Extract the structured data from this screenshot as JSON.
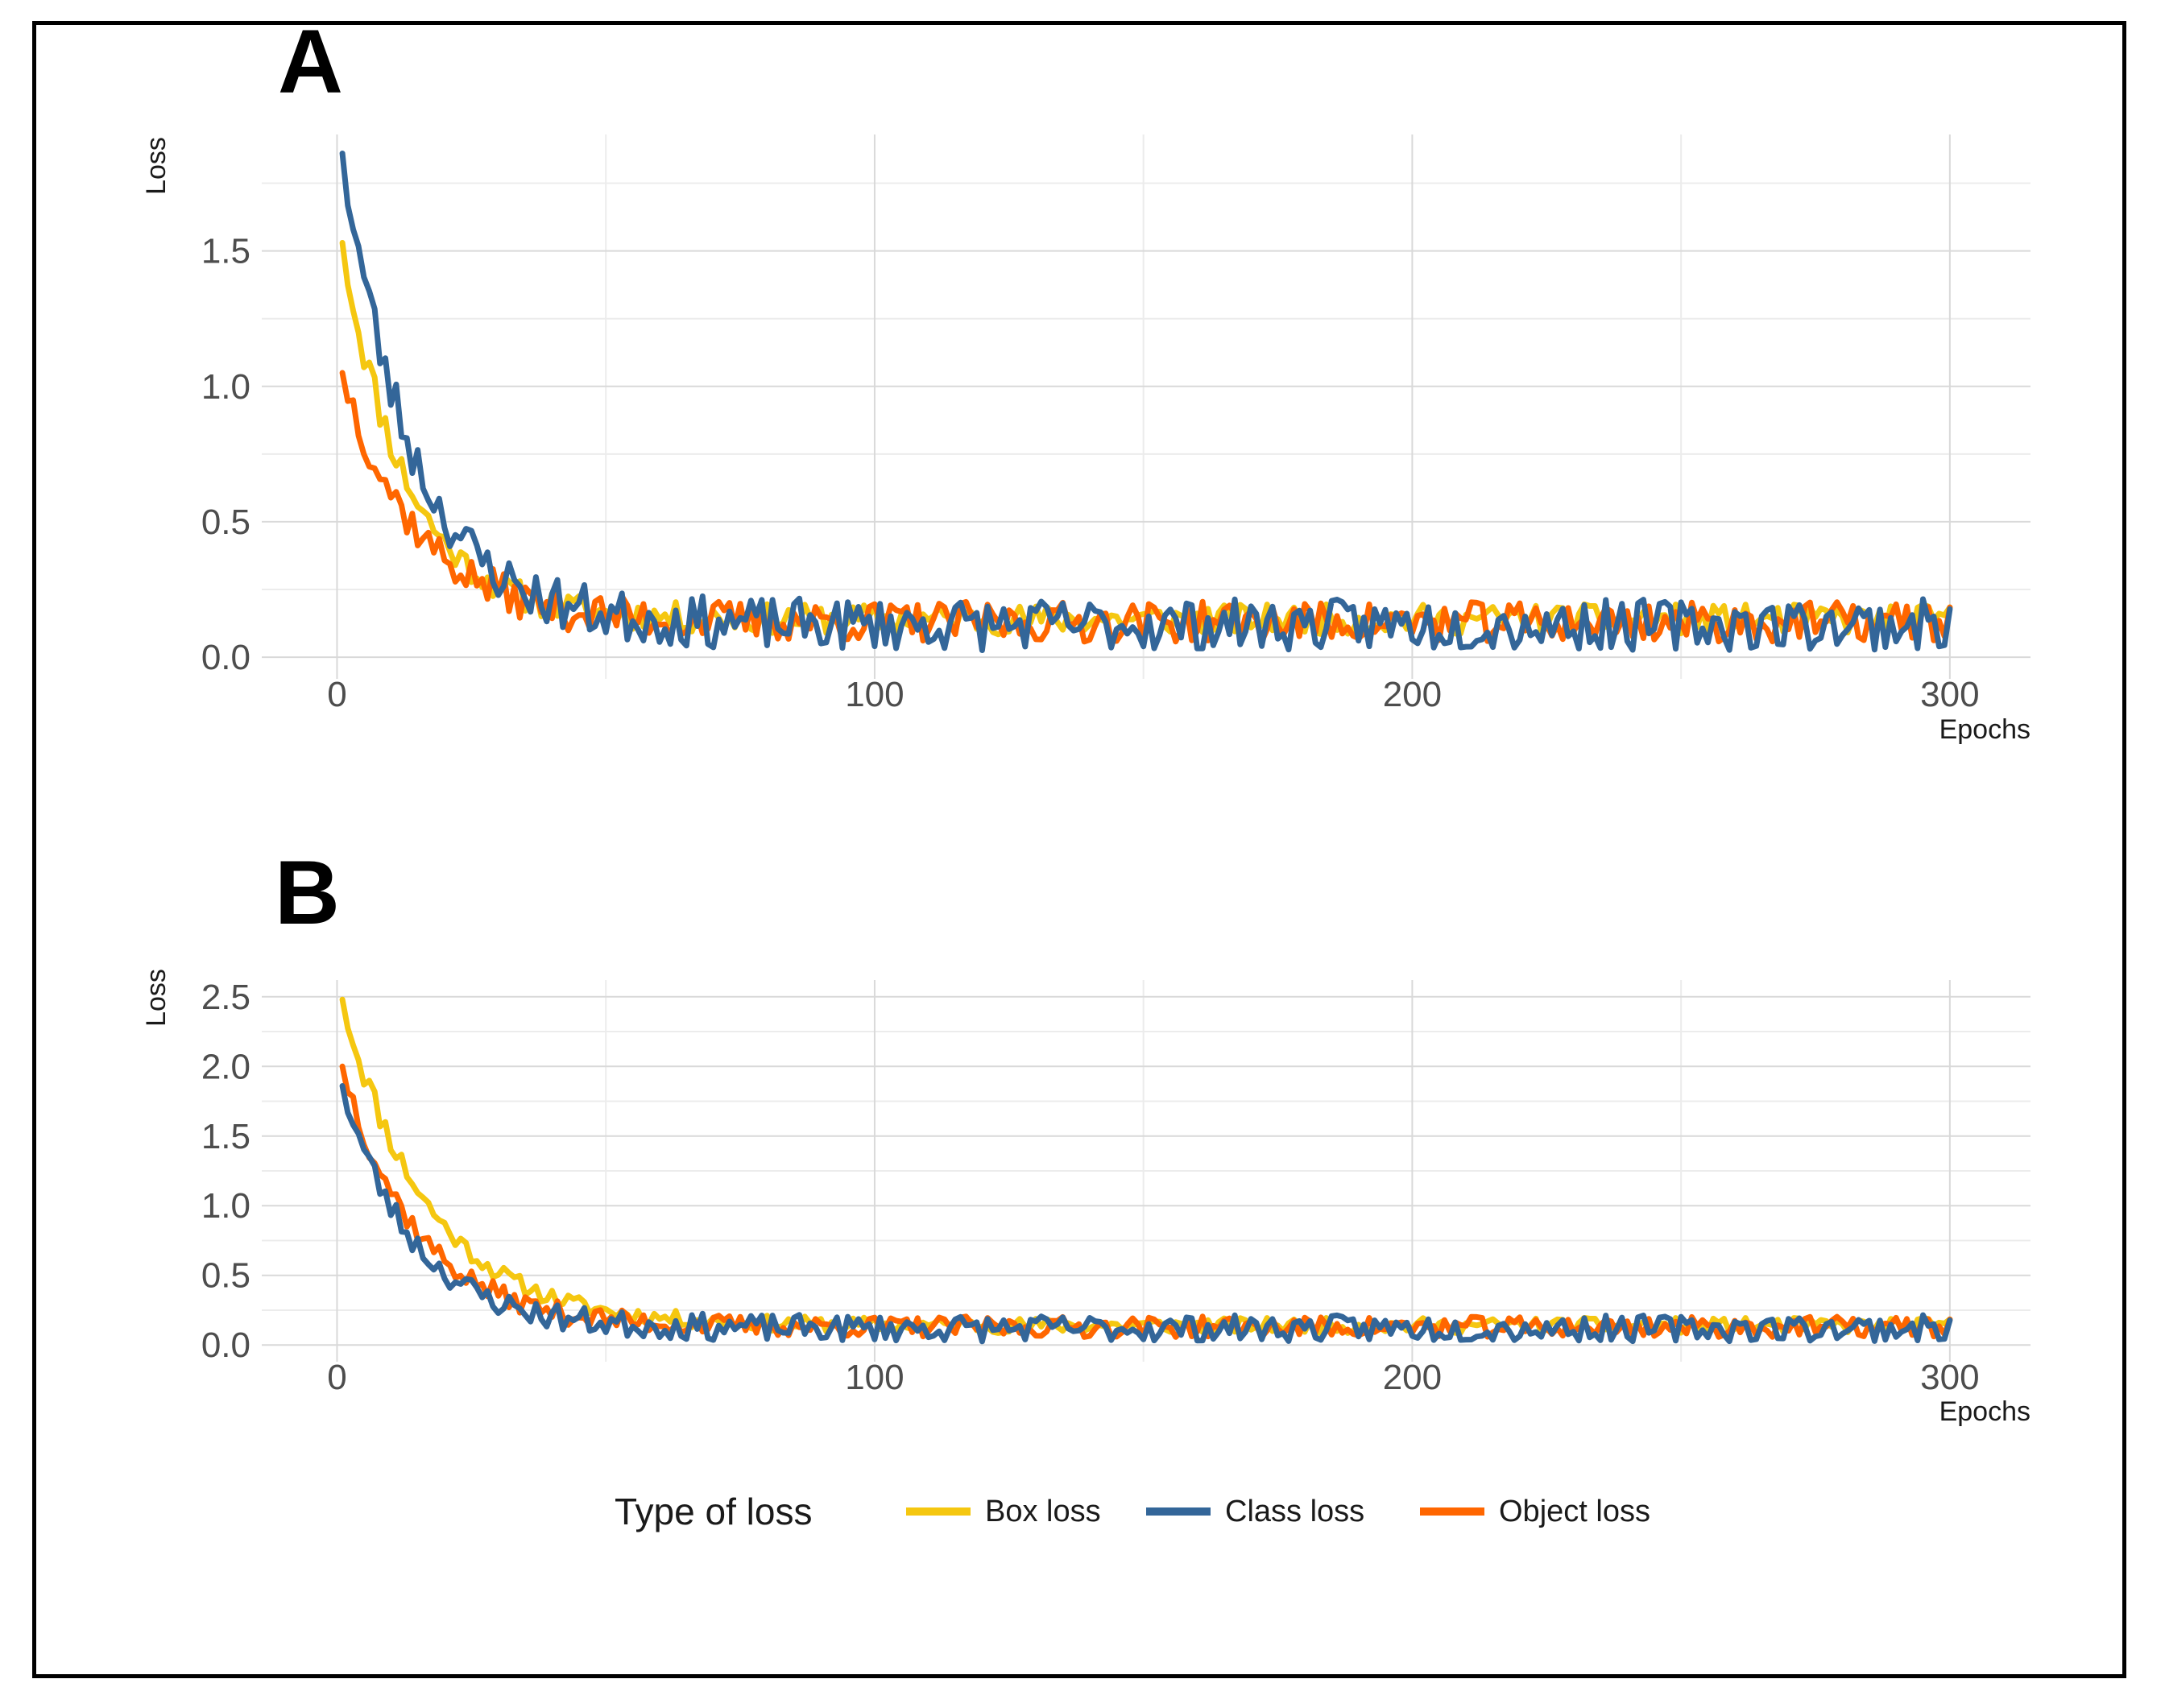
{
  "colors": {
    "box": "#F5C710",
    "class": "#336699",
    "object": "#FF6600",
    "grid_major": "#d9d9d9",
    "grid_minor": "#ececec"
  },
  "legend": {
    "title": "Type of loss",
    "items": [
      {
        "label": "Box loss",
        "series_key": "box"
      },
      {
        "label": "Class loss",
        "series_key": "class"
      },
      {
        "label": "Object loss",
        "series_key": "object"
      }
    ]
  },
  "chart_data": [
    {
      "type": "line",
      "panel": "A",
      "xlabel": "Epochs",
      "ylabel": "Loss",
      "xlim": [
        -14,
        315
      ],
      "ylim": [
        -0.08,
        1.93
      ],
      "xticks": [
        0,
        100,
        200,
        300
      ],
      "xtick_labels": [
        "0",
        "100",
        "200",
        "300"
      ],
      "yticks": [
        0,
        0.5,
        1,
        1.5
      ],
      "ytick_labels": [
        "0.0",
        "0.5",
        "1.0",
        "1.5"
      ],
      "series": [
        {
          "key": "box",
          "name": "Box loss",
          "start": 1.53,
          "tau": 12,
          "floor": 0.14,
          "noise": 0.05,
          "seed": 11
        },
        {
          "key": "class",
          "name": "Class loss",
          "start": 1.86,
          "tau": 13,
          "floor": 0.12,
          "noise": 0.09,
          "seed": 23
        },
        {
          "key": "object",
          "name": "Object loss",
          "start": 1.05,
          "tau": 14,
          "floor": 0.13,
          "noise": 0.07,
          "seed": 37
        }
      ]
    },
    {
      "type": "line",
      "panel": "B",
      "xlabel": "Epochs",
      "ylabel": "Loss",
      "xlim": [
        -14,
        315
      ],
      "ylim": [
        -0.12,
        2.62
      ],
      "xticks": [
        0,
        100,
        200,
        300
      ],
      "xtick_labels": [
        "0",
        "100",
        "200",
        "300"
      ],
      "yticks": [
        0,
        0.5,
        1,
        1.5,
        2,
        2.5
      ],
      "ytick_labels": [
        "0.0",
        "0.5",
        "1.0",
        "1.5",
        "2.0",
        "2.5"
      ],
      "series": [
        {
          "key": "box",
          "name": "Box loss",
          "start": 2.48,
          "tau": 16,
          "floor": 0.14,
          "noise": 0.05,
          "seed": 11
        },
        {
          "key": "class",
          "name": "Class loss",
          "start": 1.86,
          "tau": 13,
          "floor": 0.12,
          "noise": 0.09,
          "seed": 23
        },
        {
          "key": "object",
          "name": "Object loss",
          "start": 2.0,
          "tau": 14,
          "floor": 0.13,
          "noise": 0.07,
          "seed": 37
        }
      ]
    }
  ]
}
